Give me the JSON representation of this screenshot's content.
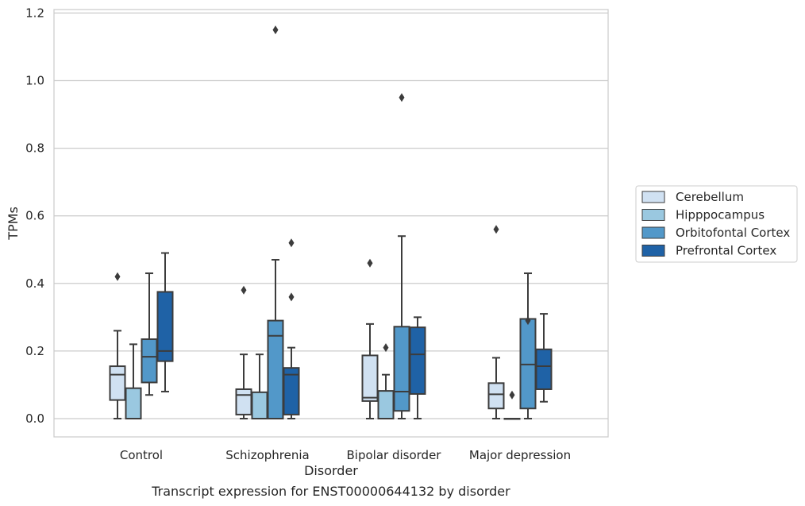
{
  "chart_data": {
    "type": "box",
    "title": "",
    "caption": "Transcript expression for ENST00000644132 by disorder",
    "xlabel": "Disorder",
    "ylabel": "TPMs",
    "ylim": [
      -0.055,
      1.21
    ],
    "yticks": [
      "0.0",
      "0.2",
      "0.4",
      "0.6",
      "0.8",
      "1.0",
      "1.2"
    ],
    "grid": "horizontal",
    "legend_position": "right",
    "categories": [
      "Control",
      "Schizophrenia",
      "Bipolar disorder",
      "Major depression"
    ],
    "colors": {
      "Cerebellum": "#d0e1f2",
      "Hipppocampus": "#9ac8e0",
      "Orbitofontal Cortex": "#5298c9",
      "Prefrontal Cortex": "#1f62a6",
      "box_edge": "#3c3c3c",
      "grid": "#cccccc",
      "frame": "#cccccc"
    },
    "series": [
      {
        "name": "Cerebellum",
        "boxes": [
          {
            "min": 0.0,
            "q1": 0.055,
            "median": 0.13,
            "q3": 0.155,
            "max": 0.26,
            "outliers": [
              0.42
            ]
          },
          {
            "min": 0.0,
            "q1": 0.012,
            "median": 0.07,
            "q3": 0.087,
            "max": 0.19,
            "outliers": [
              0.38
            ]
          },
          {
            "min": 0.0,
            "q1": 0.052,
            "median": 0.062,
            "q3": 0.187,
            "max": 0.28,
            "outliers": [
              0.46
            ]
          },
          {
            "min": 0.0,
            "q1": 0.03,
            "median": 0.072,
            "q3": 0.105,
            "max": 0.18,
            "outliers": [
              0.56
            ]
          }
        ]
      },
      {
        "name": "Hipppocampus",
        "boxes": [
          {
            "min": 0.0,
            "q1": 0.0,
            "median": 0.0,
            "q3": 0.09,
            "max": 0.22,
            "outliers": []
          },
          {
            "min": 0.0,
            "q1": 0.0,
            "median": 0.0,
            "q3": 0.078,
            "max": 0.19,
            "outliers": []
          },
          {
            "min": 0.0,
            "q1": 0.0,
            "median": 0.0,
            "q3": 0.082,
            "max": 0.13,
            "outliers": [
              0.21
            ]
          },
          {
            "min": 0.0,
            "q1": 0.0,
            "median": 0.0,
            "q3": 0.0,
            "max": 0.0,
            "outliers": [
              0.07
            ]
          }
        ]
      },
      {
        "name": "Orbitofontal Cortex",
        "boxes": [
          {
            "min": 0.07,
            "q1": 0.107,
            "median": 0.183,
            "q3": 0.235,
            "max": 0.43,
            "outliers": []
          },
          {
            "min": 0.0,
            "q1": 0.0,
            "median": 0.245,
            "q3": 0.29,
            "max": 0.47,
            "outliers": [
              1.15
            ]
          },
          {
            "min": 0.0,
            "q1": 0.023,
            "median": 0.08,
            "q3": 0.272,
            "max": 0.54,
            "outliers": [
              0.95
            ]
          },
          {
            "min": 0.0,
            "q1": 0.03,
            "median": 0.16,
            "q3": 0.295,
            "max": 0.43,
            "outliers": [
              0.29
            ]
          }
        ]
      },
      {
        "name": "Prefrontal Cortex",
        "boxes": [
          {
            "min": 0.08,
            "q1": 0.17,
            "median": 0.2,
            "q3": 0.375,
            "max": 0.49,
            "outliers": []
          },
          {
            "min": 0.0,
            "q1": 0.012,
            "median": 0.13,
            "q3": 0.15,
            "max": 0.21,
            "outliers": [
              0.36,
              0.52
            ]
          },
          {
            "min": 0.0,
            "q1": 0.073,
            "median": 0.19,
            "q3": 0.27,
            "max": 0.3,
            "outliers": []
          },
          {
            "min": 0.05,
            "q1": 0.087,
            "median": 0.155,
            "q3": 0.205,
            "max": 0.31,
            "outliers": []
          }
        ]
      }
    ]
  }
}
